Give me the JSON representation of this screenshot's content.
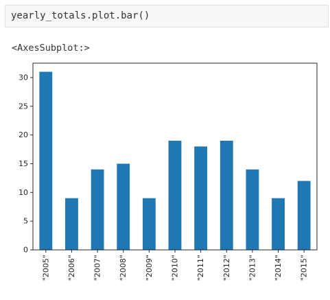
{
  "code": {
    "object": "yearly_totals",
    "accessor": "plot",
    "method": "bar",
    "call": "()"
  },
  "output_repr": "<AxesSubplot:>",
  "colors": {
    "bar": "#1f77b4",
    "axis": "#262626"
  },
  "chart_data": {
    "type": "bar",
    "categories": [
      "\"2005\"",
      "\"2006\"",
      "\"2007\"",
      "\"2008\"",
      "\"2009\"",
      "\"2010\"",
      "\"2011\"",
      "\"2012\"",
      "\"2013\"",
      "\"2014\"",
      "\"2015\""
    ],
    "values": [
      31,
      9,
      14,
      15,
      9,
      19,
      18,
      19,
      14,
      9,
      12
    ],
    "yticks": [
      0,
      5,
      10,
      15,
      20,
      25,
      30
    ],
    "ylim": [
      0,
      32.5
    ],
    "title": "",
    "xlabel": "",
    "ylabel": "",
    "grid": false,
    "legend": false
  }
}
